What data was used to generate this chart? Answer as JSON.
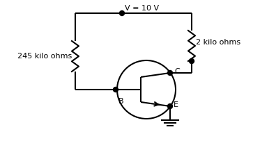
{
  "bg_color": "#ffffff",
  "line_color": "#000000",
  "vcc_label": "V = 10 V",
  "r1_label": "245 kilo ohms",
  "r2_label": "2 kilo ohms",
  "node_B_label": "B",
  "node_C_label": "C",
  "node_E_label": "E",
  "figsize": [
    3.63,
    2.29
  ],
  "dpi": 100,
  "xlim": [
    0,
    363
  ],
  "ylim": [
    0,
    229
  ]
}
